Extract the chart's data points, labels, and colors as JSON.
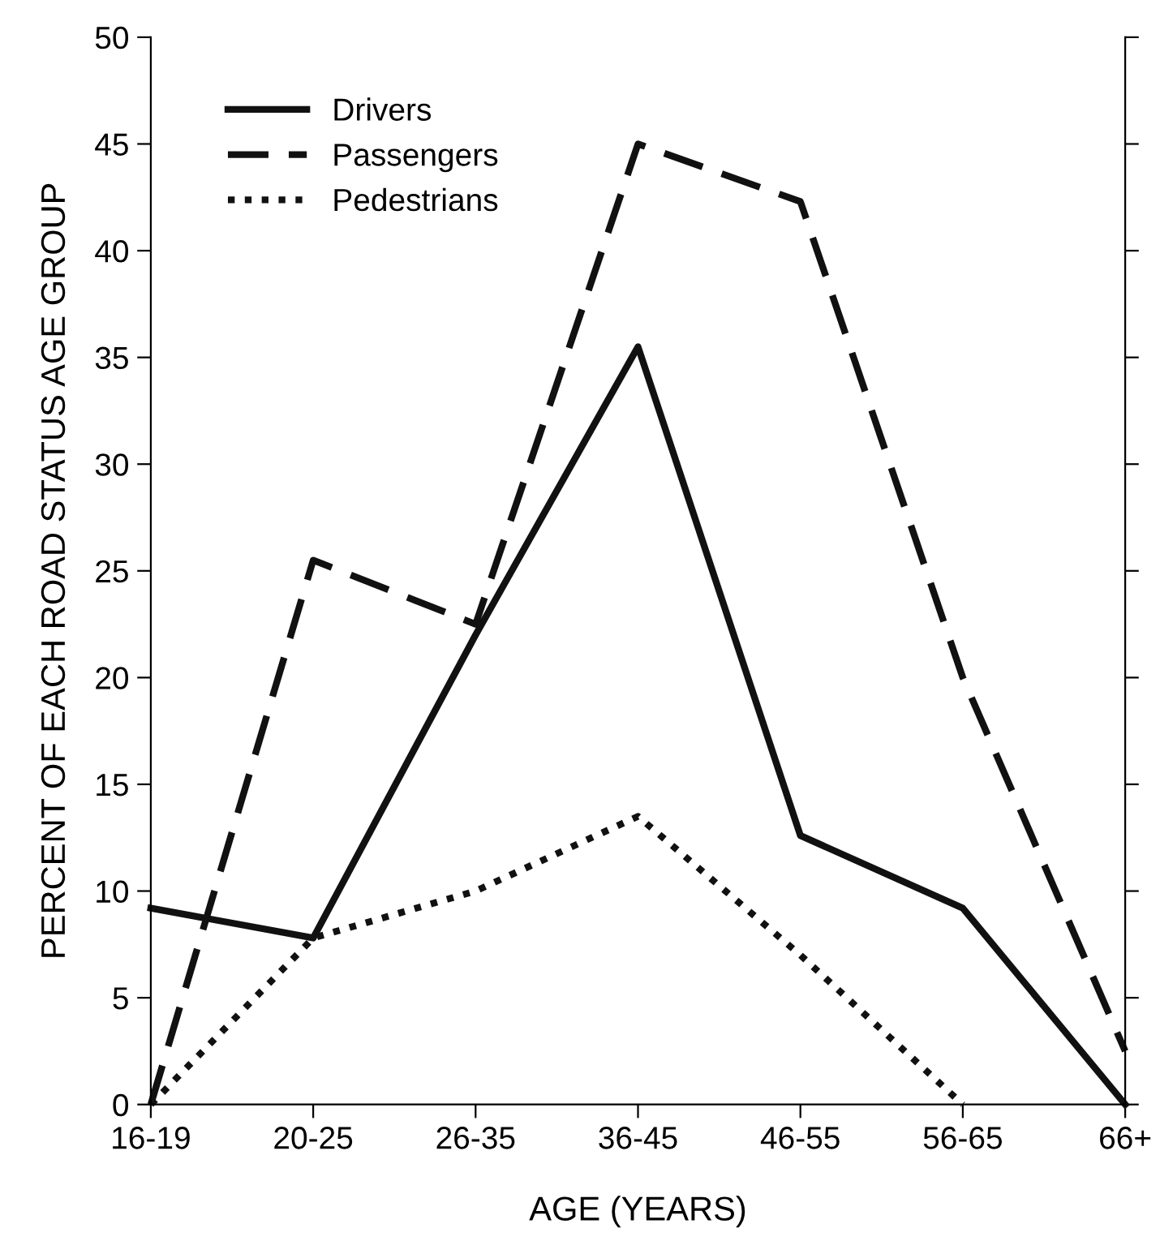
{
  "chart_data": {
    "type": "line",
    "xlabel": "AGE (YEARS)",
    "ylabel": "PERCENT OF EACH ROAD STATUS AGE GROUP",
    "categories": [
      "16-19",
      "20-25",
      "26-35",
      "36-45",
      "46-55",
      "56-65",
      "66+"
    ],
    "series": [
      {
        "name": "Drivers",
        "color": "#111111",
        "line_style": "solid",
        "values": [
          9.2,
          7.8,
          22,
          35.5,
          12.6,
          9.2,
          0
        ]
      },
      {
        "name": "Passengers",
        "color": "#111111",
        "line_style": "dashed",
        "values": [
          0,
          25.5,
          22.5,
          45,
          42.3,
          20,
          2.5
        ]
      },
      {
        "name": "Pedestrians",
        "color": "#111111",
        "line_style": "dotted",
        "values": [
          0,
          7.8,
          10,
          13.5,
          7,
          0,
          null
        ]
      }
    ],
    "ylim": [
      0,
      50
    ],
    "yticks": [
      0,
      5,
      10,
      15,
      20,
      25,
      30,
      35,
      40,
      45,
      50
    ],
    "grid": false,
    "legend": "top left",
    "marker": "none"
  }
}
